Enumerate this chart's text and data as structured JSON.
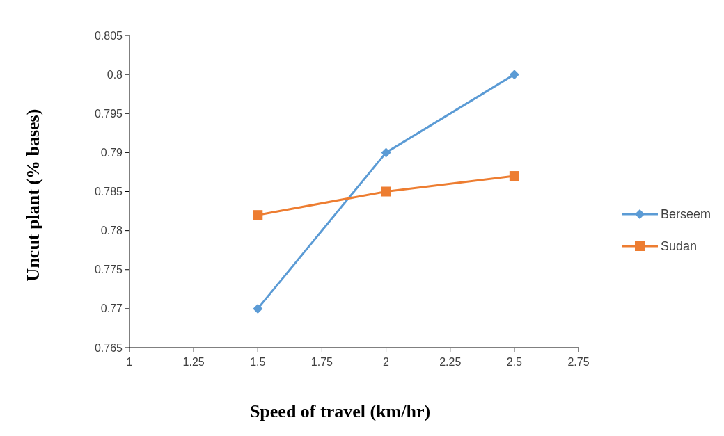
{
  "chart_data": {
    "type": "line",
    "xlabel": "Speed of travel (km/hr)",
    "ylabel": "Uncut plant (%  bases)",
    "xlim": [
      1,
      2.75
    ],
    "xticks": [
      1,
      1.25,
      1.5,
      1.75,
      2,
      2.25,
      2.5,
      2.75
    ],
    "ylim": [
      0.765,
      0.805
    ],
    "yticks": [
      0.765,
      0.77,
      0.775,
      0.78,
      0.785,
      0.79,
      0.795,
      0.8,
      0.805
    ],
    "x": [
      1.5,
      2,
      2.5
    ],
    "grid": false,
    "legend": "right",
    "series": [
      {
        "name": "Berseem",
        "color": "#5b9bd5",
        "marker": "diamond",
        "values": [
          0.77,
          0.79,
          0.8
        ]
      },
      {
        "name": "Sudan",
        "color": "#ed7d31",
        "marker": "square",
        "values": [
          0.782,
          0.785,
          0.787
        ]
      }
    ]
  }
}
